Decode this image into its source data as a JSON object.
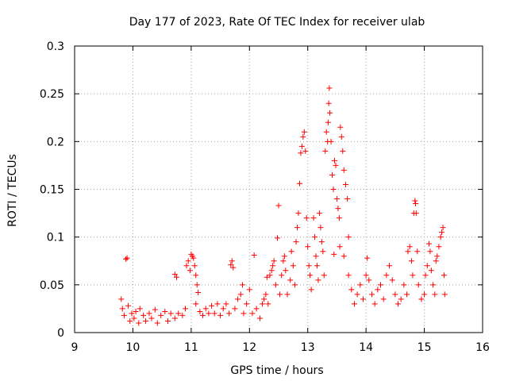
{
  "chart_data": {
    "type": "scatter",
    "title": "Day 177 of 2023, Rate Of TEC Index for receiver ulab",
    "xlabel": "GPS time / hours",
    "ylabel": "ROTI / TECUs",
    "xlim": [
      9,
      16
    ],
    "ylim": [
      0,
      0.3
    ],
    "xticks": [
      9,
      10,
      11,
      12,
      13,
      14,
      15,
      16
    ],
    "yticks": [
      0,
      0.05,
      0.1,
      0.15,
      0.2,
      0.25,
      0.3
    ],
    "xtick_labels": [
      "9",
      "10",
      "11",
      "12",
      "13",
      "14",
      "15",
      "16"
    ],
    "ytick_labels": [
      "0",
      "0.05",
      "0.1",
      "0.15",
      "0.2",
      "0.25",
      "0.3"
    ],
    "grid": true,
    "marker": "+",
    "color": "#ff0000",
    "series": [
      {
        "name": "ROTI",
        "points": [
          [
            9.8,
            0.035
          ],
          [
            9.82,
            0.025
          ],
          [
            9.85,
            0.018
          ],
          [
            9.88,
            0.077
          ],
          [
            9.9,
            0.078
          ],
          [
            9.92,
            0.028
          ],
          [
            9.95,
            0.012
          ],
          [
            9.98,
            0.02
          ],
          [
            10.02,
            0.015
          ],
          [
            10.05,
            0.022
          ],
          [
            10.1,
            0.01
          ],
          [
            10.12,
            0.025
          ],
          [
            10.18,
            0.018
          ],
          [
            10.22,
            0.012
          ],
          [
            10.28,
            0.02
          ],
          [
            10.32,
            0.015
          ],
          [
            10.38,
            0.024
          ],
          [
            10.42,
            0.01
          ],
          [
            10.48,
            0.018
          ],
          [
            10.55,
            0.022
          ],
          [
            10.6,
            0.012
          ],
          [
            10.65,
            0.02
          ],
          [
            10.72,
            0.015
          ],
          [
            10.78,
            0.02
          ],
          [
            10.72,
            0.061
          ],
          [
            10.75,
            0.058
          ],
          [
            10.85,
            0.018
          ],
          [
            10.9,
            0.025
          ],
          [
            10.92,
            0.07
          ],
          [
            10.95,
            0.075
          ],
          [
            10.98,
            0.065
          ],
          [
            11.0,
            0.082
          ],
          [
            11.02,
            0.08
          ],
          [
            11.04,
            0.078
          ],
          [
            11.06,
            0.07
          ],
          [
            11.08,
            0.06
          ],
          [
            11.1,
            0.05
          ],
          [
            11.12,
            0.042
          ],
          [
            11.08,
            0.03
          ],
          [
            11.15,
            0.022
          ],
          [
            11.2,
            0.018
          ],
          [
            11.25,
            0.025
          ],
          [
            11.3,
            0.02
          ],
          [
            11.35,
            0.028
          ],
          [
            11.4,
            0.02
          ],
          [
            11.45,
            0.03
          ],
          [
            11.5,
            0.018
          ],
          [
            11.55,
            0.025
          ],
          [
            11.6,
            0.03
          ],
          [
            11.65,
            0.02
          ],
          [
            11.68,
            0.071
          ],
          [
            11.7,
            0.075
          ],
          [
            11.72,
            0.068
          ],
          [
            11.75,
            0.025
          ],
          [
            11.8,
            0.035
          ],
          [
            11.85,
            0.04
          ],
          [
            11.88,
            0.05
          ],
          [
            11.9,
            0.02
          ],
          [
            11.95,
            0.03
          ],
          [
            12.0,
            0.045
          ],
          [
            12.05,
            0.02
          ],
          [
            12.08,
            0.081
          ],
          [
            12.12,
            0.025
          ],
          [
            12.18,
            0.015
          ],
          [
            12.22,
            0.03
          ],
          [
            12.25,
            0.035
          ],
          [
            12.28,
            0.04
          ],
          [
            12.3,
            0.058
          ],
          [
            12.32,
            0.03
          ],
          [
            12.35,
            0.06
          ],
          [
            12.38,
            0.065
          ],
          [
            12.4,
            0.07
          ],
          [
            12.42,
            0.075
          ],
          [
            12.45,
            0.05
          ],
          [
            12.48,
            0.099
          ],
          [
            12.5,
            0.133
          ],
          [
            12.52,
            0.04
          ],
          [
            12.55,
            0.06
          ],
          [
            12.58,
            0.075
          ],
          [
            12.6,
            0.08
          ],
          [
            12.62,
            0.065
          ],
          [
            12.65,
            0.04
          ],
          [
            12.7,
            0.055
          ],
          [
            12.72,
            0.085
          ],
          [
            12.75,
            0.07
          ],
          [
            12.78,
            0.05
          ],
          [
            12.8,
            0.095
          ],
          [
            12.82,
            0.11
          ],
          [
            12.84,
            0.125
          ],
          [
            12.86,
            0.156
          ],
          [
            12.88,
            0.188
          ],
          [
            12.9,
            0.195
          ],
          [
            12.92,
            0.205
          ],
          [
            12.94,
            0.21
          ],
          [
            12.96,
            0.19
          ],
          [
            12.98,
            0.12
          ],
          [
            13.0,
            0.09
          ],
          [
            13.02,
            0.07
          ],
          [
            13.04,
            0.06
          ],
          [
            13.06,
            0.045
          ],
          [
            13.1,
            0.12
          ],
          [
            13.12,
            0.1
          ],
          [
            13.14,
            0.08
          ],
          [
            13.16,
            0.07
          ],
          [
            13.18,
            0.055
          ],
          [
            13.2,
            0.125
          ],
          [
            13.22,
            0.11
          ],
          [
            13.24,
            0.095
          ],
          [
            13.26,
            0.085
          ],
          [
            13.28,
            0.06
          ],
          [
            13.3,
            0.19
          ],
          [
            13.32,
            0.21
          ],
          [
            13.34,
            0.2
          ],
          [
            13.35,
            0.22
          ],
          [
            13.36,
            0.24
          ],
          [
            13.37,
            0.256
          ],
          [
            13.38,
            0.23
          ],
          [
            13.4,
            0.2
          ],
          [
            13.42,
            0.165
          ],
          [
            13.44,
            0.15
          ],
          [
            13.46,
            0.18
          ],
          [
            13.48,
            0.175
          ],
          [
            13.5,
            0.14
          ],
          [
            13.52,
            0.13
          ],
          [
            13.54,
            0.12
          ],
          [
            13.56,
            0.215
          ],
          [
            13.58,
            0.205
          ],
          [
            13.6,
            0.19
          ],
          [
            13.62,
            0.17
          ],
          [
            13.65,
            0.155
          ],
          [
            13.68,
            0.14
          ],
          [
            13.7,
            0.1
          ],
          [
            13.45,
            0.082
          ],
          [
            13.55,
            0.09
          ],
          [
            13.62,
            0.08
          ],
          [
            13.7,
            0.06
          ],
          [
            13.75,
            0.045
          ],
          [
            13.8,
            0.03
          ],
          [
            13.85,
            0.04
          ],
          [
            13.9,
            0.05
          ],
          [
            13.95,
            0.035
          ],
          [
            14.0,
            0.06
          ],
          [
            14.02,
            0.078
          ],
          [
            14.05,
            0.055
          ],
          [
            14.1,
            0.04
          ],
          [
            14.15,
            0.03
          ],
          [
            14.2,
            0.045
          ],
          [
            14.25,
            0.05
          ],
          [
            14.3,
            0.035
          ],
          [
            14.35,
            0.06
          ],
          [
            14.4,
            0.07
          ],
          [
            14.45,
            0.055
          ],
          [
            14.5,
            0.04
          ],
          [
            14.55,
            0.03
          ],
          [
            14.6,
            0.035
          ],
          [
            14.65,
            0.05
          ],
          [
            14.7,
            0.04
          ],
          [
            14.72,
            0.085
          ],
          [
            14.75,
            0.09
          ],
          [
            14.78,
            0.075
          ],
          [
            14.8,
            0.06
          ],
          [
            14.82,
            0.125
          ],
          [
            14.84,
            0.138
          ],
          [
            14.85,
            0.135
          ],
          [
            14.86,
            0.125
          ],
          [
            14.88,
            0.085
          ],
          [
            14.9,
            0.05
          ],
          [
            14.95,
            0.035
          ],
          [
            15.0,
            0.04
          ],
          [
            15.02,
            0.06
          ],
          [
            15.05,
            0.07
          ],
          [
            15.08,
            0.093
          ],
          [
            15.1,
            0.085
          ],
          [
            15.12,
            0.065
          ],
          [
            15.15,
            0.05
          ],
          [
            15.18,
            0.04
          ],
          [
            15.2,
            0.075
          ],
          [
            15.22,
            0.08
          ],
          [
            15.25,
            0.09
          ],
          [
            15.28,
            0.1
          ],
          [
            15.3,
            0.105
          ],
          [
            15.32,
            0.11
          ],
          [
            15.34,
            0.06
          ],
          [
            15.35,
            0.04
          ]
        ]
      }
    ]
  }
}
